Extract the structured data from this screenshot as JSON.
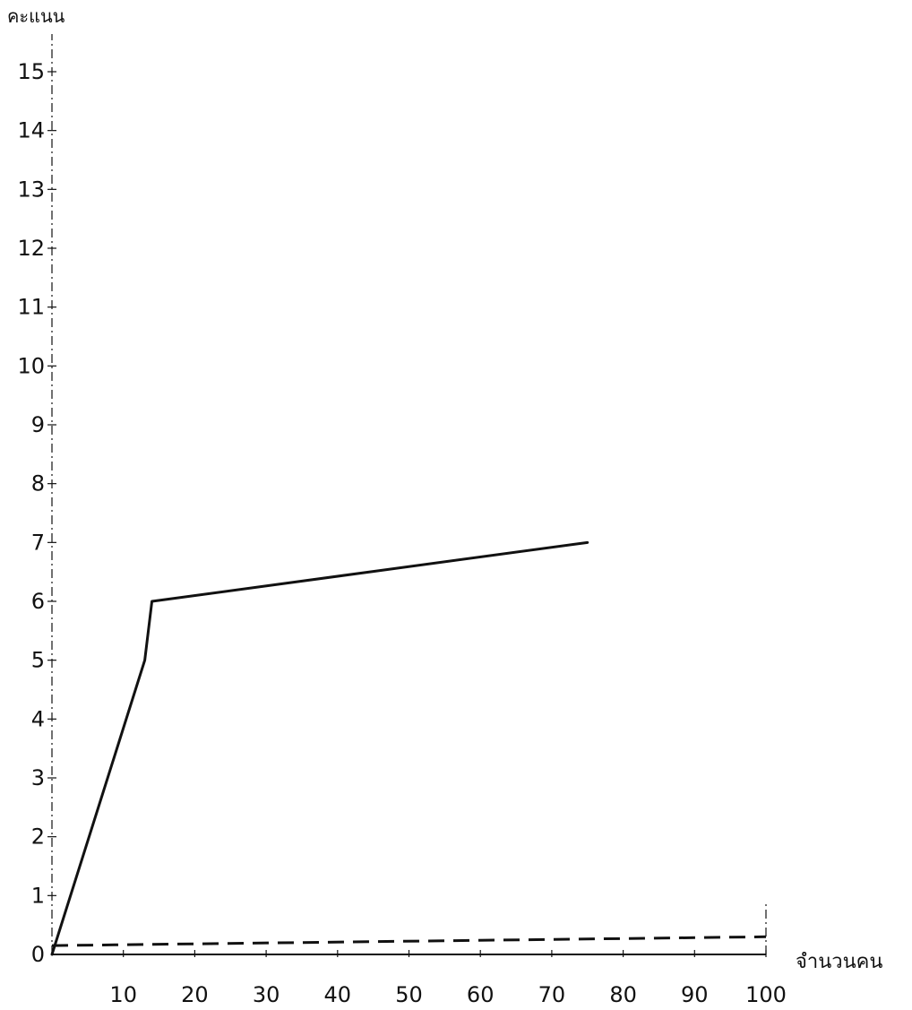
{
  "chart_data": {
    "type": "line",
    "ylabel": "คะแนน",
    "xlabel": "จำนวนคน",
    "xlim": [
      0,
      100
    ],
    "ylim": [
      0,
      15
    ],
    "xticks": [
      10,
      20,
      30,
      40,
      50,
      60,
      70,
      80,
      90,
      100
    ],
    "yticks": [
      0,
      1,
      2,
      3,
      4,
      5,
      6,
      7,
      8,
      9,
      10,
      11,
      12,
      13,
      14,
      15
    ],
    "series": [
      {
        "style": "solid",
        "points": [
          [
            0,
            0
          ],
          [
            13,
            5
          ],
          [
            14,
            6
          ],
          [
            75,
            7
          ]
        ]
      },
      {
        "style": "dashed",
        "points": [
          [
            0,
            0.15
          ],
          [
            100,
            0.3
          ]
        ]
      }
    ],
    "grid": false
  }
}
